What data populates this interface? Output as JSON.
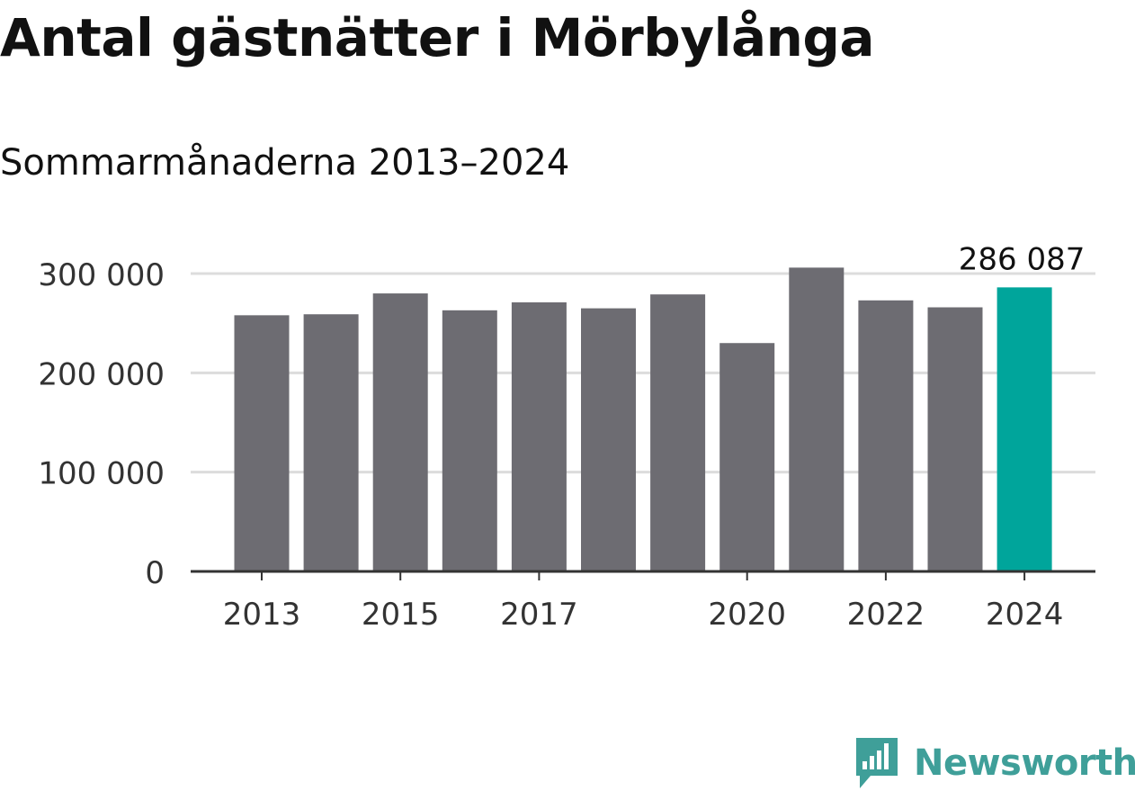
{
  "title": "Antal gästnätter i Mörbylånga",
  "subtitle": "Sommarmånaderna 2013–2024",
  "brand": {
    "name": "Newsworthy",
    "color": "#3f9f99",
    "icon": "newsworthy-logo-icon"
  },
  "colors": {
    "bar": "#6d6c72",
    "highlight": "#00a59b",
    "grid": "#dcdcdc",
    "axis": "#333333"
  },
  "chart_data": {
    "type": "bar",
    "title": "Antal gästnätter i Mörbylånga",
    "subtitle": "Sommarmånaderna 2013–2024",
    "xlabel": "",
    "ylabel": "",
    "categories": [
      "2013",
      "2014",
      "2015",
      "2016",
      "2017",
      "2018",
      "2019",
      "2020",
      "2021",
      "2022",
      "2023",
      "2024"
    ],
    "values": [
      258000,
      259000,
      280000,
      263000,
      271000,
      265000,
      279000,
      230000,
      306000,
      273000,
      266000,
      286087
    ],
    "ylim": [
      0,
      300000
    ],
    "yticks": [
      0,
      100000,
      200000,
      300000
    ],
    "ytick_labels": [
      "0",
      "100 000",
      "200 000",
      "300 000"
    ],
    "xtick_labels": [
      "2013",
      "",
      "2015",
      "",
      "2017",
      "",
      "",
      "2020",
      "",
      "2022",
      "",
      "2024"
    ],
    "highlight_index": 11,
    "annotation": "286 087",
    "grid": true,
    "legend": "none"
  }
}
